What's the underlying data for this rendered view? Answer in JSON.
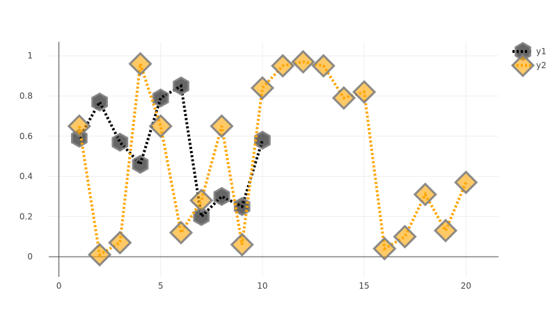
{
  "chart_data": {
    "type": "line",
    "title": "",
    "xlabel": "",
    "ylabel": "",
    "xlim": [
      -0.5,
      21.6
    ],
    "ylim": [
      -0.1,
      1.07
    ],
    "x_ticks": [
      0,
      5,
      10,
      15,
      20
    ],
    "y_ticks": [
      0,
      0.2,
      0.4,
      0.6,
      0.8,
      1
    ],
    "grid": true,
    "legend_position": "top-right",
    "series": [
      {
        "name": "y1",
        "color": "#000000",
        "marker": "hexagon",
        "line_style": "dotted",
        "x": [
          1,
          2,
          3,
          4,
          5,
          6,
          7,
          8,
          9,
          10
        ],
        "y": [
          0.59,
          0.77,
          0.57,
          0.46,
          0.79,
          0.85,
          0.2,
          0.3,
          0.25,
          0.58
        ]
      },
      {
        "name": "y2",
        "color": "#ffa500",
        "marker": "diamond",
        "line_style": "dotted",
        "x": [
          1,
          2,
          3,
          4,
          5,
          6,
          7,
          8,
          9,
          10,
          11,
          12,
          13,
          14,
          15,
          16,
          17,
          18,
          19,
          20
        ],
        "y": [
          0.65,
          0.01,
          0.07,
          0.96,
          0.65,
          0.12,
          0.28,
          0.65,
          0.06,
          0.84,
          0.95,
          0.97,
          0.95,
          0.79,
          0.82,
          0.04,
          0.1,
          0.31,
          0.13,
          0.37
        ]
      }
    ]
  }
}
